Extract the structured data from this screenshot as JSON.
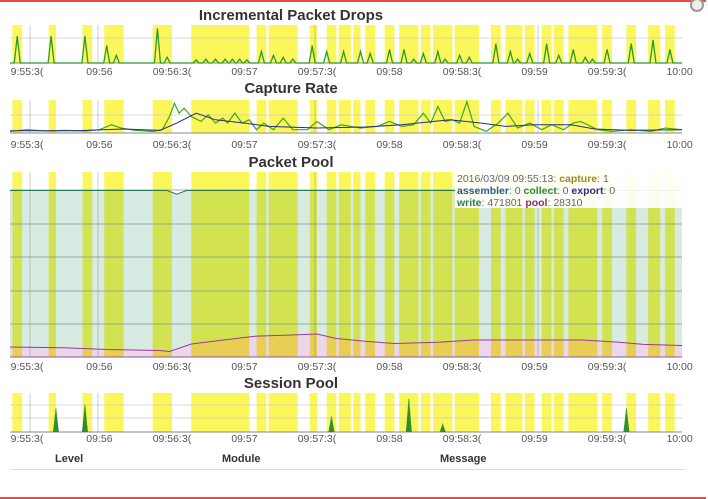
{
  "colors": {
    "band": "#fbf65a",
    "drops": "#2a9a2a",
    "drops_base": "#3a8aa8",
    "capture_raw": "#3aaa1a",
    "capture_avg": "#2a2a8a",
    "pool_top": "#2a7a5a",
    "pool_line": "#9a3a9a",
    "pool_fill_top": "#d7ebe3",
    "pool_fill_bottom": "#ecd6ea",
    "session_a": "#2a9a2a",
    "session_b": "#3a1a6a",
    "session_c": "#b06a10",
    "frame": "#f04848"
  },
  "x_ticks": [
    "9:55:3(",
    "09:56",
    "09:56:3(",
    "09:57",
    "09:57:3(",
    "09:58",
    "09:58:3(",
    "09:59",
    "09:59:3(",
    "10:00"
  ],
  "tooltip": {
    "timestamp": "2016/03/09 09:55:13:",
    "capture_label": "capture",
    "capture_value": ": 1",
    "assembler_label": "assembler",
    "assembler_value": ": 0 ",
    "collect_label": "collect",
    "collect_value": ": 0 ",
    "export_label": "export",
    "export_value": ": 0",
    "write_label": "write",
    "write_value": ": 471801 ",
    "pool_label": "pool",
    "pool_value": ": 28310"
  },
  "table_columns": [
    "Level",
    "Module",
    "Message"
  ],
  "chart_data": [
    {
      "type": "line",
      "title": "Incremental Packet Drops",
      "xlim": [
        "09:55:23",
        "10:00:01"
      ],
      "ylim": [
        0,
        1
      ],
      "grid": true,
      "bands": [
        [
          "09:55:24",
          "09:55:28"
        ],
        [
          "09:55:39",
          "09:55:42"
        ],
        [
          "09:55:53",
          "09:55:57"
        ],
        [
          "09:56:02",
          "09:56:10"
        ],
        [
          "09:56:22",
          "09:56:30"
        ],
        [
          "09:56:38",
          "09:57:02"
        ],
        [
          "09:57:05",
          "09:57:09"
        ],
        [
          "09:57:10",
          "09:57:22"
        ],
        [
          "09:57:27",
          "09:57:30"
        ],
        [
          "09:57:34",
          "09:57:38"
        ],
        [
          "09:57:39",
          "09:57:44"
        ],
        [
          "09:57:45",
          "09:57:48"
        ],
        [
          "09:57:50",
          "09:57:54"
        ],
        [
          "09:57:58",
          "09:58:02"
        ],
        [
          "09:58:04",
          "09:58:12"
        ],
        [
          "09:58:13",
          "09:58:17"
        ],
        [
          "09:58:18",
          "09:58:26"
        ],
        [
          "09:58:27",
          "09:58:37"
        ],
        [
          "09:58:42",
          "09:58:46"
        ],
        [
          "09:58:48",
          "09:58:55"
        ],
        [
          "09:58:56",
          "09:59:00"
        ],
        [
          "09:59:03",
          "09:59:07"
        ],
        [
          "09:59:08",
          "09:59:12"
        ],
        [
          "09:59:14",
          "09:59:26"
        ],
        [
          "09:59:28",
          "09:59:32"
        ],
        [
          "09:59:38",
          "09:59:42"
        ],
        [
          "09:59:47",
          "09:59:52"
        ],
        [
          "09:59:54",
          "09:59:58"
        ]
      ],
      "spikes": [
        [
          "09:55:26",
          0.7
        ],
        [
          "09:55:40",
          0.7
        ],
        [
          "09:55:54",
          0.7
        ],
        [
          "09:56:03",
          0.45
        ],
        [
          "09:56:07",
          0.2
        ],
        [
          "09:56:24",
          0.9
        ],
        [
          "09:56:28",
          0.15
        ],
        [
          "09:56:40",
          0.08
        ],
        [
          "09:56:44",
          0.1
        ],
        [
          "09:56:48",
          0.1
        ],
        [
          "09:56:52",
          0.1
        ],
        [
          "09:56:55",
          0.1
        ],
        [
          "09:56:58",
          0.1
        ],
        [
          "09:57:01",
          0.08
        ],
        [
          "09:57:07",
          0.3
        ],
        [
          "09:57:12",
          0.2
        ],
        [
          "09:57:16",
          0.15
        ],
        [
          "09:57:20",
          0.1
        ],
        [
          "09:57:28",
          0.45
        ],
        [
          "09:57:34",
          0.3
        ],
        [
          "09:57:41",
          0.3
        ],
        [
          "09:57:48",
          0.3
        ],
        [
          "09:57:52",
          0.25
        ],
        [
          "09:58:00",
          0.35
        ],
        [
          "09:58:06",
          0.35
        ],
        [
          "09:58:10",
          0.1
        ],
        [
          "09:58:14",
          0.25
        ],
        [
          "09:58:20",
          0.3
        ],
        [
          "09:58:23",
          0.1
        ],
        [
          "09:58:29",
          0.2
        ],
        [
          "09:58:33",
          0.15
        ],
        [
          "09:58:44",
          0.5
        ],
        [
          "09:58:50",
          0.3
        ],
        [
          "09:58:53",
          0.1
        ],
        [
          "09:58:58",
          0.25
        ],
        [
          "09:59:05",
          0.5
        ],
        [
          "09:59:10",
          0.2
        ],
        [
          "09:59:16",
          0.35
        ],
        [
          "09:59:21",
          0.15
        ],
        [
          "09:59:24",
          0.1
        ],
        [
          "09:59:30",
          0.35
        ],
        [
          "09:59:40",
          0.5
        ],
        [
          "09:59:49",
          0.6
        ],
        [
          "09:59:56",
          0.35
        ]
      ]
    },
    {
      "type": "line",
      "title": "Capture Rate",
      "xlim": [
        "09:55:23",
        "10:00:01"
      ],
      "ylim": [
        0,
        1
      ],
      "grid": true,
      "series": [
        {
          "values": [
            [
              "09:55:23",
              0.05
            ],
            [
              "09:55:30",
              0.1
            ],
            [
              "09:55:38",
              0.06
            ],
            [
              "09:55:46",
              0.08
            ],
            [
              "09:55:54",
              0.06
            ],
            [
              "09:56:00",
              0.1
            ],
            [
              "09:56:05",
              0.25
            ],
            [
              "09:56:09",
              0.15
            ],
            [
              "09:56:15",
              0.08
            ],
            [
              "09:56:22",
              0.05
            ],
            [
              "09:56:26",
              0.1
            ],
            [
              "09:56:29",
              0.5
            ],
            [
              "09:56:31",
              0.9
            ],
            [
              "09:56:33",
              0.6
            ],
            [
              "09:56:35",
              0.75
            ],
            [
              "09:56:38",
              0.5
            ],
            [
              "09:56:42",
              0.35
            ],
            [
              "09:56:45",
              0.55
            ],
            [
              "09:56:48",
              0.3
            ],
            [
              "09:56:51",
              0.45
            ],
            [
              "09:56:53",
              0.3
            ],
            [
              "09:56:56",
              0.6
            ],
            [
              "09:56:59",
              0.3
            ],
            [
              "09:57:02",
              0.4
            ],
            [
              "09:57:05",
              0.1
            ],
            [
              "09:57:08",
              0.3
            ],
            [
              "09:57:12",
              0.1
            ],
            [
              "09:57:16",
              0.45
            ],
            [
              "09:57:20",
              0.1
            ],
            [
              "09:57:26",
              0.1
            ],
            [
              "09:57:30",
              0.35
            ],
            [
              "09:57:35",
              0.1
            ],
            [
              "09:57:40",
              0.25
            ],
            [
              "09:57:48",
              0.15
            ],
            [
              "09:57:55",
              0.2
            ],
            [
              "09:58:00",
              0.35
            ],
            [
              "09:58:05",
              0.2
            ],
            [
              "09:58:10",
              0.25
            ],
            [
              "09:58:14",
              0.6
            ],
            [
              "09:58:17",
              0.3
            ],
            [
              "09:58:20",
              0.8
            ],
            [
              "09:58:23",
              0.35
            ],
            [
              "09:58:26",
              0.4
            ],
            [
              "09:58:29",
              0.3
            ],
            [
              "09:58:32",
              0.95
            ],
            [
              "09:58:35",
              0.2
            ],
            [
              "09:58:40",
              0.05
            ],
            [
              "09:58:45",
              0.3
            ],
            [
              "09:58:49",
              0.6
            ],
            [
              "09:58:53",
              0.15
            ],
            [
              "09:58:58",
              0.3
            ],
            [
              "09:59:03",
              0.1
            ],
            [
              "09:59:07",
              0.25
            ],
            [
              "09:59:12",
              0.1
            ],
            [
              "09:59:16",
              0.3
            ],
            [
              "09:59:19",
              0.35
            ],
            [
              "09:59:22",
              0.25
            ],
            [
              "09:59:26",
              0.1
            ],
            [
              "09:59:32",
              0.05
            ],
            [
              "09:59:40",
              0.1
            ],
            [
              "09:59:48",
              0.05
            ],
            [
              "09:59:54",
              0.15
            ],
            [
              "10:00:01",
              0.1
            ]
          ]
        },
        {
          "values": [
            [
              "09:55:23",
              0.07
            ],
            [
              "09:55:50",
              0.07
            ],
            [
              "09:56:10",
              0.12
            ],
            [
              "09:56:25",
              0.08
            ],
            [
              "09:56:32",
              0.3
            ],
            [
              "09:56:40",
              0.6
            ],
            [
              "09:56:48",
              0.4
            ],
            [
              "09:57:00",
              0.3
            ],
            [
              "09:57:10",
              0.2
            ],
            [
              "09:57:30",
              0.15
            ],
            [
              "09:57:50",
              0.18
            ],
            [
              "09:58:05",
              0.25
            ],
            [
              "09:58:25",
              0.4
            ],
            [
              "09:58:38",
              0.3
            ],
            [
              "09:58:48",
              0.2
            ],
            [
              "09:59:00",
              0.25
            ],
            [
              "09:59:15",
              0.25
            ],
            [
              "09:59:25",
              0.12
            ],
            [
              "09:59:40",
              0.08
            ],
            [
              "10:00:01",
              0.1
            ]
          ]
        }
      ]
    },
    {
      "type": "area",
      "title": "Packet Pool",
      "xlim": [
        "09:55:23",
        "10:00:01"
      ],
      "ylim": [
        0,
        1
      ],
      "grid": true,
      "series": [
        {
          "values": [
            [
              "09:55:23",
              0.9
            ],
            [
              "09:56:28",
              0.9
            ],
            [
              "09:56:32",
              0.88
            ],
            [
              "09:56:36",
              0.9
            ],
            [
              "10:00:01",
              0.9
            ]
          ]
        },
        {
          "values": [
            [
              "09:55:23",
              0.054
            ],
            [
              "09:55:45",
              0.05
            ],
            [
              "09:56:05",
              0.04
            ],
            [
              "09:56:25",
              0.035
            ],
            [
              "09:56:29",
              0.03
            ],
            [
              "09:56:38",
              0.07
            ],
            [
              "09:56:50",
              0.09
            ],
            [
              "09:57:05",
              0.113
            ],
            [
              "09:57:18",
              0.118
            ],
            [
              "09:57:30",
              0.124
            ],
            [
              "09:57:38",
              0.1
            ],
            [
              "09:57:50",
              0.085
            ],
            [
              "09:58:02",
              0.073
            ],
            [
              "09:58:20",
              0.08
            ],
            [
              "09:58:35",
              0.092
            ],
            [
              "09:59:20",
              0.092
            ],
            [
              "09:59:35",
              0.08
            ],
            [
              "09:59:45",
              0.068
            ],
            [
              "10:00:01",
              0.062
            ]
          ]
        }
      ]
    },
    {
      "type": "line",
      "title": "Session Pool",
      "xlim": [
        "09:55:23",
        "10:00:01"
      ],
      "ylim": [
        0,
        1
      ],
      "grid": true,
      "spikes": [
        [
          "09:55:42",
          0.6
        ],
        [
          "09:55:54",
          0.7
        ],
        [
          "09:57:36",
          0.4
        ],
        [
          "09:58:08",
          0.85
        ],
        [
          "09:58:22",
          0.2
        ],
        [
          "09:59:38",
          0.6
        ]
      ]
    }
  ]
}
